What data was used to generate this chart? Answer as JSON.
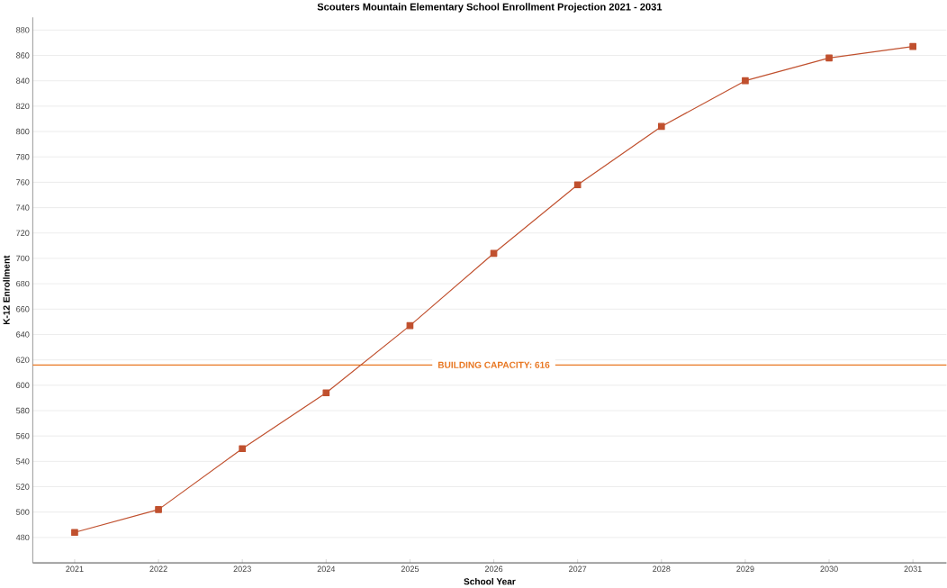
{
  "chart_data": {
    "type": "line",
    "title": "Scouters Mountain Elementary School Enrollment Projection 2021 - 2031",
    "xlabel": "School Year",
    "ylabel": "K-12 Enrollment",
    "categories": [
      "2021",
      "2022",
      "2023",
      "2024",
      "2025",
      "2026",
      "2027",
      "2028",
      "2029",
      "2030",
      "2031"
    ],
    "values": [
      484,
      502,
      550,
      594,
      647,
      704,
      758,
      804,
      840,
      858,
      867
    ],
    "color": "#c0502e",
    "marker": "square",
    "line_style": "solid",
    "ylim": [
      460,
      890
    ],
    "yticks": [
      480,
      500,
      520,
      540,
      560,
      580,
      600,
      620,
      640,
      660,
      680,
      700,
      720,
      740,
      760,
      780,
      800,
      820,
      840,
      860,
      880
    ],
    "grid": "y",
    "ref_lines": [
      {
        "axis": "y",
        "value": 616,
        "label": "BUILDING CAPACITY: 616",
        "color": "#e87722"
      }
    ]
  }
}
